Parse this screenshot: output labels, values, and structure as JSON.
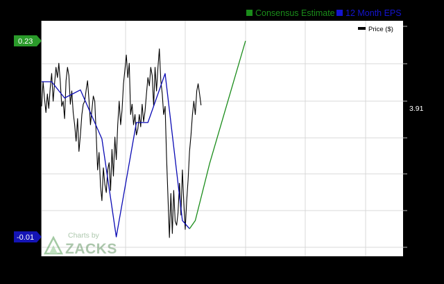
{
  "legend_top": {
    "consensus_label": "Consensus Estimate",
    "eps_label": "12 Month EPS"
  },
  "legend_inner": {
    "price_label": "Price ($)"
  },
  "axis_badges": {
    "eps_top": "0.23",
    "eps_bottom": "-0.01",
    "price_current": "3.91"
  },
  "watermark": {
    "line1": "Charts by",
    "line2": "ZACKS"
  },
  "colors": {
    "background": "#000000",
    "plot": "#ffffff",
    "grid": "#d9d9d9",
    "consensus": "#1a8c1a",
    "eps": "#0a0ab4",
    "price": "#000000",
    "badge_green": "#2a9a2a",
    "badge_blue": "#1414b4"
  },
  "chart_data": {
    "type": "line",
    "title": "",
    "legend_placement": "top-right",
    "grid": true,
    "series": [
      {
        "name": "12 Month EPS",
        "axis": "eps",
        "x": [
          0,
          0.07,
          0.16,
          0.27,
          0.42,
          0.52,
          0.66,
          0.74,
          0.86,
          0.98,
          1.03
        ],
        "values": [
          0.18,
          0.18,
          0.16,
          0.17,
          0.11,
          -0.01,
          0.13,
          0.13,
          0.19,
          0.01,
          0.0
        ]
      },
      {
        "name": "Consensus Estimate",
        "axis": "eps",
        "x": [
          1.03,
          1.07,
          1.17,
          1.42
        ],
        "values": [
          0.0,
          0.01,
          0.08,
          0.23
        ]
      },
      {
        "name": "Price ($)",
        "axis": "price",
        "x": [
          0.0,
          0.01,
          0.02,
          0.03,
          0.04,
          0.05,
          0.06,
          0.07,
          0.08,
          0.09,
          0.1,
          0.11,
          0.12,
          0.13,
          0.14,
          0.15,
          0.16,
          0.17,
          0.18,
          0.19,
          0.2,
          0.21,
          0.22,
          0.23,
          0.24,
          0.25,
          0.26,
          0.27,
          0.28,
          0.29,
          0.3,
          0.31,
          0.32,
          0.33,
          0.34,
          0.35,
          0.36,
          0.37,
          0.38,
          0.39,
          0.4,
          0.41,
          0.42,
          0.43,
          0.44,
          0.45,
          0.46,
          0.47,
          0.48,
          0.49,
          0.5,
          0.51,
          0.52,
          0.53,
          0.54,
          0.55,
          0.56,
          0.57,
          0.58,
          0.59,
          0.6,
          0.61,
          0.62,
          0.63,
          0.64,
          0.65,
          0.66,
          0.67,
          0.68,
          0.69,
          0.7,
          0.71,
          0.72,
          0.73,
          0.74,
          0.75,
          0.76,
          0.77,
          0.78,
          0.79,
          0.8,
          0.81,
          0.82,
          0.83,
          0.84,
          0.85,
          0.86,
          0.87,
          0.88,
          0.89,
          0.9,
          0.91,
          0.92,
          0.93,
          0.94,
          0.95,
          0.96,
          0.97,
          0.98,
          0.99,
          1.0,
          1.01,
          1.02,
          1.03,
          1.04,
          1.05,
          1.06,
          1.07,
          1.08,
          1.09,
          1.1,
          1.11
        ],
        "values": [
          3.9,
          4.14,
          3.98,
          3.84,
          4.02,
          3.88,
          4.08,
          4.22,
          3.95,
          4.12,
          4.28,
          4.18,
          4.32,
          4.14,
          3.9,
          3.95,
          3.78,
          4.15,
          4.28,
          4.2,
          3.92,
          4.05,
          3.84,
          3.72,
          3.56,
          3.78,
          3.46,
          3.62,
          3.82,
          3.92,
          3.95,
          4.06,
          4.15,
          3.96,
          3.72,
          3.86,
          4.0,
          3.95,
          3.62,
          3.28,
          3.45,
          3.12,
          2.98,
          3.3,
          3.14,
          3.06,
          3.28,
          3.35,
          3.08,
          3.48,
          3.22,
          3.6,
          3.38,
          3.72,
          3.95,
          3.72,
          3.86,
          4.12,
          4.26,
          4.4,
          4.18,
          4.32,
          3.82,
          3.92,
          3.72,
          3.82,
          3.62,
          3.68,
          3.82,
          3.7,
          3.92,
          3.75,
          3.85,
          4.02,
          4.18,
          4.1,
          4.28,
          4.2,
          3.9,
          4.28,
          4.05,
          4.28,
          4.46,
          4.15,
          4.02,
          3.82,
          3.9,
          3.4,
          3.0,
          2.62,
          3.05,
          2.66,
          3.08,
          2.78,
          2.74,
          2.86,
          3.15,
          2.84,
          3.28,
          2.96,
          2.7,
          2.98,
          3.18,
          3.46,
          3.62,
          3.82,
          3.95,
          3.82,
          4.05,
          4.12,
          4.02,
          3.91
        ]
      }
    ]
  }
}
